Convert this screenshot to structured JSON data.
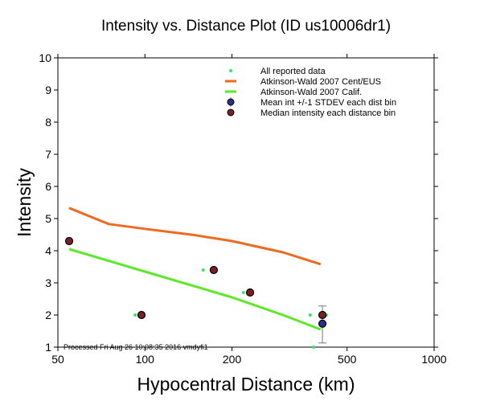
{
  "chart_data": {
    "type": "scatter",
    "title": "Intensity vs. Distance Plot (ID us10006dr1)",
    "xlabel": "Hypocentral Distance (km)",
    "ylabel": "Intensity",
    "xscale": "log",
    "xlim": [
      50,
      1000
    ],
    "ylim": [
      1,
      10
    ],
    "xticks": [
      50,
      100,
      200,
      500,
      1000
    ],
    "yticks": [
      1,
      2,
      3,
      4,
      5,
      6,
      7,
      8,
      9,
      10
    ],
    "grid": false,
    "legend_position": "top-right",
    "footnote": "Processed Fri Aug 26 10:08:35 2016 vmdyfi1",
    "series": [
      {
        "name": "All reported data",
        "kind": "points",
        "color": "#2ee86a",
        "points": [
          [
            92.5,
            2.0
          ],
          [
            159,
            3.4
          ],
          [
            219,
            2.7
          ],
          [
            373,
            2.0
          ],
          [
            383,
            1.0
          ],
          [
            424,
            2.0
          ]
        ]
      },
      {
        "name": "Atkinson-Wald 2007 Cent/EUS",
        "kind": "line",
        "color": "#ee6a1e",
        "points": [
          [
            54.7,
            5.33
          ],
          [
            75,
            4.83
          ],
          [
            100,
            4.68
          ],
          [
            150,
            4.48
          ],
          [
            200,
            4.3
          ],
          [
            300,
            3.95
          ],
          [
            405,
            3.58
          ]
        ]
      },
      {
        "name": "Atkinson-Wald 2007 Calif.",
        "kind": "line",
        "color": "#5ee82a",
        "points": [
          [
            54.7,
            4.05
          ],
          [
            100,
            3.35
          ],
          [
            200,
            2.55
          ],
          [
            300,
            2.0
          ],
          [
            405,
            1.55
          ]
        ]
      },
      {
        "name": "Mean int +/-1 STDEV each dist bin",
        "kind": "errorbar",
        "color": "#2b2f8a",
        "points": [
          [
            411,
            1.73,
            1.13,
            2.28
          ]
        ]
      },
      {
        "name": "Median intensity each distance bin",
        "kind": "points",
        "color": "#7a1f24",
        "points": [
          [
            54.7,
            4.3
          ],
          [
            97.3,
            2.0
          ],
          [
            173,
            3.4
          ],
          [
            231,
            2.7
          ],
          [
            411,
            2.0
          ]
        ]
      }
    ]
  }
}
